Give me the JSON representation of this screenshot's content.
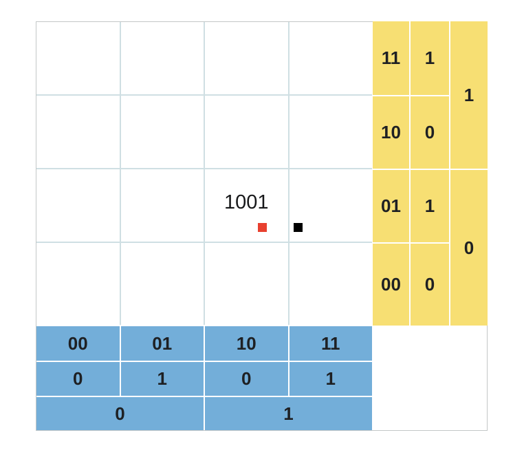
{
  "colors": {
    "panel-yellow": "#f7df73",
    "panel-blue": "#73aed9",
    "grid-line": "#cfdfe3",
    "outer-border": "#c3c7c7",
    "marker-red": "#e8402f",
    "marker-black": "#000000",
    "label-text": "#1e2023"
  },
  "kmap": {
    "annotation": "1001"
  },
  "row_headers": {
    "rows": [
      {
        "bits": "11",
        "value": "1"
      },
      {
        "bits": "10",
        "value": "0"
      },
      {
        "bits": "01",
        "value": "1"
      },
      {
        "bits": "00",
        "value": "0"
      }
    ],
    "groups": [
      "1",
      "0"
    ]
  },
  "col_headers": {
    "bits": [
      "00",
      "01",
      "10",
      "11"
    ],
    "values": [
      "0",
      "1",
      "0",
      "1"
    ],
    "groups": [
      "0",
      "1"
    ]
  }
}
